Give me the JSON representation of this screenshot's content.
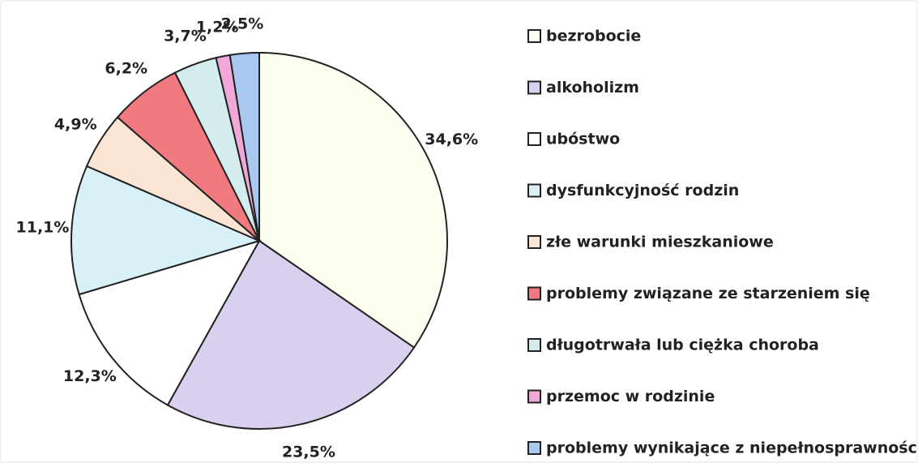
{
  "chart_data": {
    "type": "pie",
    "categories": [
      "bezrobocie",
      "alkoholizm",
      "ubóstwo",
      "dysfunkcyjność rodzin",
      "złe warunki mieszkaniowe",
      "problemy związane ze starzeniem się",
      "długotrwała lub ciężka choroba",
      "przemoc w rodzinie",
      "problemy wynikające z niepełnosprawności"
    ],
    "values": [
      34.6,
      23.5,
      12.3,
      11.1,
      4.9,
      6.2,
      3.7,
      1.2,
      2.5
    ],
    "value_labels": [
      "34,6%",
      "23,5%",
      "12,3%",
      "11,1%",
      "4,9%",
      "6,2%",
      "3,7%",
      "1,2%",
      "2,5%"
    ],
    "colors": [
      "#fdfdf0",
      "#d9d0ef",
      "#ffffff",
      "#d8f0f8",
      "#fce4d4",
      "#f07a80",
      "#d4ecec",
      "#f0a8d8",
      "#a8c8f0"
    ],
    "legend": "right"
  }
}
